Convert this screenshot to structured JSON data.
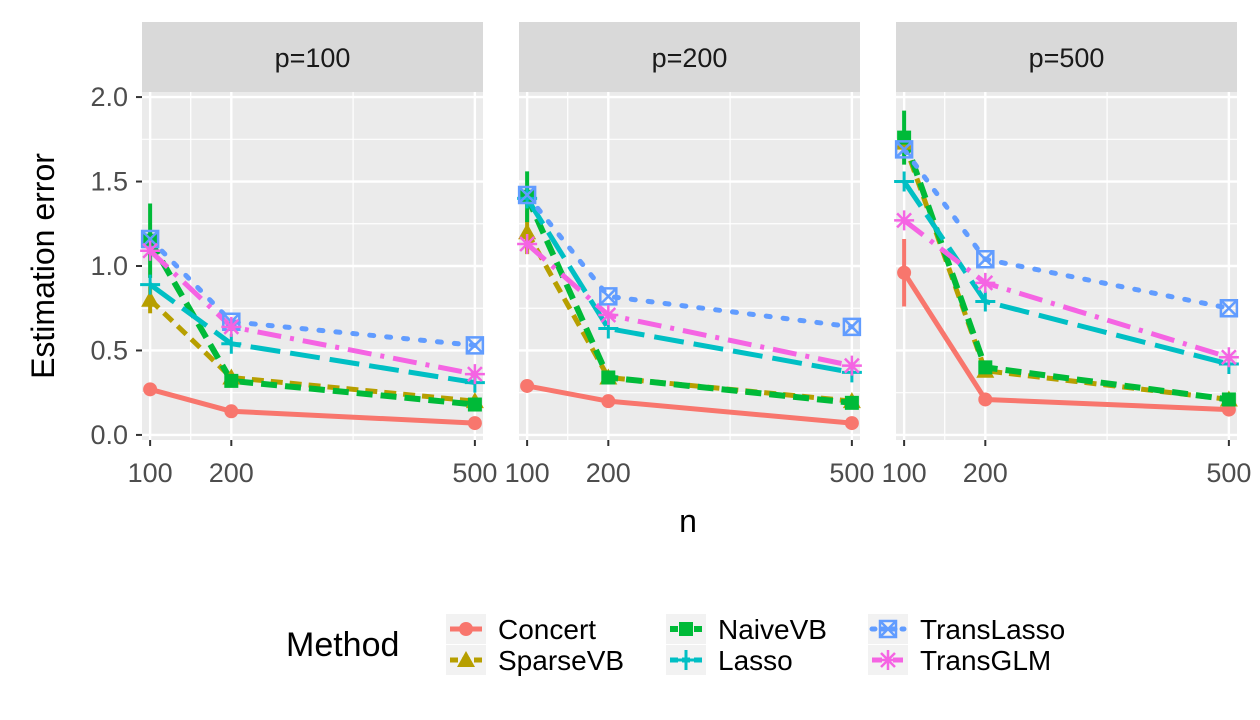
{
  "chart_data": {
    "type": "line",
    "ylabel": "Estimation error",
    "xlabel": "n",
    "x": [
      100,
      200,
      500
    ],
    "xlim": [
      90,
      510
    ],
    "ylim": [
      -0.03,
      2.03
    ],
    "yticks": [
      0.0,
      0.5,
      1.0,
      1.5,
      2.0
    ],
    "ytick_labels": [
      "0.0",
      "0.5",
      "1.0",
      "1.5",
      "2.0"
    ],
    "xticks": [
      100,
      200,
      500
    ],
    "xtick_labels": [
      "100",
      "200",
      "500"
    ],
    "legend": {
      "title": "Method",
      "position": "bottom"
    },
    "colors": {
      "Concert": "#F8766D",
      "SparseVB": "#B79F00",
      "NaiveVB": "#00BA38",
      "Lasso": "#00BFC4",
      "TransLasso": "#619CFF",
      "TransGLM": "#F564E3"
    },
    "panels": [
      {
        "title": "p=100",
        "series": [
          {
            "name": "Concert",
            "values": [
              0.27,
              0.14,
              0.07
            ],
            "err": [
              0,
              0,
              0
            ]
          },
          {
            "name": "SparseVB",
            "values": [
              0.8,
              0.34,
              0.2
            ],
            "err": [
              0.08,
              0,
              0
            ]
          },
          {
            "name": "NaiveVB",
            "values": [
              1.15,
              0.32,
              0.18
            ],
            "err": [
              0.22,
              0,
              0
            ]
          },
          {
            "name": "Lasso",
            "values": [
              0.89,
              0.54,
              0.31
            ],
            "err": [
              0,
              0,
              0
            ]
          },
          {
            "name": "TransLasso",
            "values": [
              1.16,
              0.67,
              0.53
            ],
            "err": [
              0,
              0,
              0
            ]
          },
          {
            "name": "TransGLM",
            "values": [
              1.09,
              0.64,
              0.36
            ],
            "err": [
              0,
              0,
              0
            ]
          }
        ]
      },
      {
        "title": "p=200",
        "series": [
          {
            "name": "Concert",
            "values": [
              0.29,
              0.2,
              0.07
            ],
            "err": [
              0,
              0,
              0
            ]
          },
          {
            "name": "SparseVB",
            "values": [
              1.2,
              0.34,
              0.2
            ],
            "err": [
              0.13,
              0,
              0
            ]
          },
          {
            "name": "NaiveVB",
            "values": [
              1.41,
              0.34,
              0.19
            ],
            "err": [
              0.15,
              0,
              0
            ]
          },
          {
            "name": "Lasso",
            "values": [
              1.4,
              0.63,
              0.37
            ],
            "err": [
              0,
              0,
              0
            ]
          },
          {
            "name": "TransLasso",
            "values": [
              1.42,
              0.82,
              0.64
            ],
            "err": [
              0,
              0,
              0
            ]
          },
          {
            "name": "TransGLM",
            "values": [
              1.13,
              0.71,
              0.41
            ],
            "err": [
              0,
              0,
              0
            ]
          }
        ]
      },
      {
        "title": "p=500",
        "series": [
          {
            "name": "Concert",
            "values": [
              0.96,
              0.21,
              0.15
            ],
            "err": [
              0.2,
              0,
              0
            ]
          },
          {
            "name": "SparseVB",
            "values": [
              1.73,
              0.38,
              0.21
            ],
            "err": [
              0,
              0,
              0
            ]
          },
          {
            "name": "NaiveVB",
            "values": [
              1.76,
              0.4,
              0.21
            ],
            "err": [
              0.16,
              0,
              0
            ]
          },
          {
            "name": "Lasso",
            "values": [
              1.5,
              0.79,
              0.42
            ],
            "err": [
              0,
              0,
              0
            ]
          },
          {
            "name": "TransLasso",
            "values": [
              1.69,
              1.04,
              0.75
            ],
            "err": [
              0,
              0,
              0
            ]
          },
          {
            "name": "TransGLM",
            "values": [
              1.27,
              0.9,
              0.46
            ],
            "err": [
              0,
              0,
              0
            ]
          }
        ]
      }
    ]
  }
}
